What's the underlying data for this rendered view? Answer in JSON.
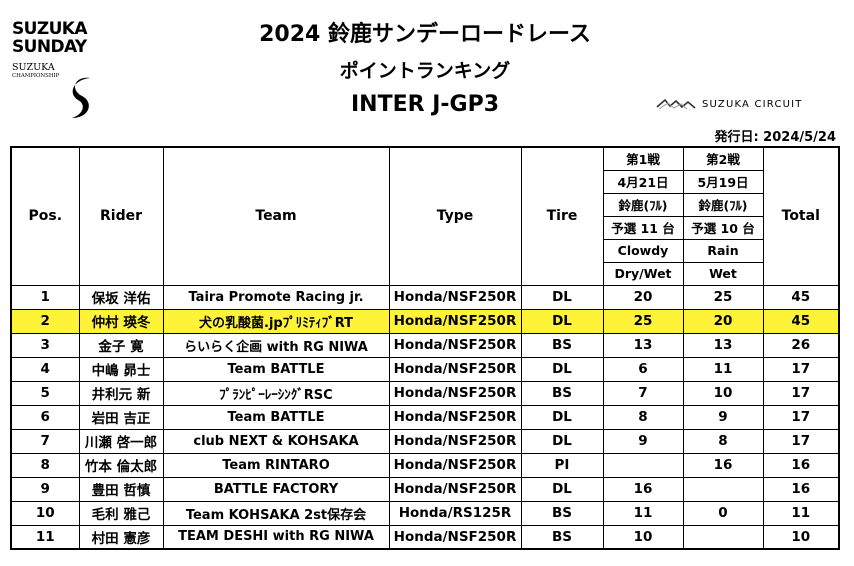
{
  "logo": {
    "line1": "SUZUKA",
    "line2": "SUNDAY",
    "line3": "SUZUKA",
    "line4": "CHAMPIONSHIP",
    "icon": "s-swoosh-icon"
  },
  "header": {
    "title": "2024 鈴鹿サンデーロードレース",
    "subtitle": "ポイントランキング",
    "class_name": "INTER J-GP3",
    "circuit_label": "SUZUKA CIRCUIT",
    "circuit_icon": "circuit-logo-icon",
    "issued": "発行日: 2024/5/24"
  },
  "table": {
    "headers": {
      "pos": "Pos.",
      "rider": "Rider",
      "team": "Team",
      "type": "Type",
      "tire": "Tire",
      "total": "Total"
    },
    "rounds": [
      {
        "round": "第1戦",
        "date": "4月21日",
        "venue": "鈴鹿(ﾌﾙ)",
        "entries": "予選 11 台",
        "weather": "Clowdy",
        "condition": "Dry/Wet"
      },
      {
        "round": "第2戦",
        "date": "5月19日",
        "venue": "鈴鹿(ﾌﾙ)",
        "entries": "予選 10 台",
        "weather": "Rain",
        "condition": "Wet"
      }
    ],
    "highlight_color": "#fff33a",
    "rows": [
      {
        "pos": "1",
        "rider": "保坂 洋佑",
        "team": "Taira Promote Racing jr.",
        "type": "Honda/NSF250R",
        "tire": "DL",
        "r1": "20",
        "r2": "25",
        "total": "45"
      },
      {
        "pos": "2",
        "rider": "仲村 瑛冬",
        "team": "犬の乳酸菌.jpﾌﾟﾘﾐﾃｨﾌﾞRT",
        "type": "Honda/NSF250R",
        "tire": "DL",
        "r1": "25",
        "r2": "20",
        "total": "45"
      },
      {
        "pos": "3",
        "rider": "金子 寛",
        "team": "らいらく企画 with RG NIWA",
        "type": "Honda/NSF250R",
        "tire": "BS",
        "r1": "13",
        "r2": "13",
        "total": "26"
      },
      {
        "pos": "4",
        "rider": "中嶋 昴士",
        "team": "Team BATTLE",
        "type": "Honda/NSF250R",
        "tire": "DL",
        "r1": "6",
        "r2": "11",
        "total": "17"
      },
      {
        "pos": "5",
        "rider": "井利元 新",
        "team": "ﾌﾟﾗﾝﾋﾟｰﾚｰｼﾝｸﾞRSC",
        "type": "Honda/NSF250R",
        "tire": "BS",
        "r1": "7",
        "r2": "10",
        "total": "17"
      },
      {
        "pos": "6",
        "rider": "岩田 吉正",
        "team": "Team BATTLE",
        "type": "Honda/NSF250R",
        "tire": "DL",
        "r1": "8",
        "r2": "9",
        "total": "17"
      },
      {
        "pos": "7",
        "rider": "川瀬 啓一郎",
        "team": "club NEXT & KOHSAKA",
        "type": "Honda/NSF250R",
        "tire": "DL",
        "r1": "9",
        "r2": "8",
        "total": "17"
      },
      {
        "pos": "8",
        "rider": "竹本 倫太郎",
        "team": "Team RINTARO",
        "type": "Honda/NSF250R",
        "tire": "PI",
        "r1": "",
        "r2": "16",
        "total": "16"
      },
      {
        "pos": "9",
        "rider": "豊田 哲慎",
        "team": "BATTLE FACTORY",
        "type": "Honda/NSF250R",
        "tire": "DL",
        "r1": "16",
        "r2": "",
        "total": "16"
      },
      {
        "pos": "10",
        "rider": "毛利 雅己",
        "team": "Team KOHSAKA 2st保存会",
        "type": "Honda/RS125R",
        "tire": "BS",
        "r1": "11",
        "r2": "0",
        "total": "11"
      },
      {
        "pos": "11",
        "rider": "村田 憲彦",
        "team": "TEAM DESHI with RG NIWA",
        "type": "Honda/NSF250R",
        "tire": "BS",
        "r1": "10",
        "r2": "",
        "total": "10"
      }
    ]
  }
}
